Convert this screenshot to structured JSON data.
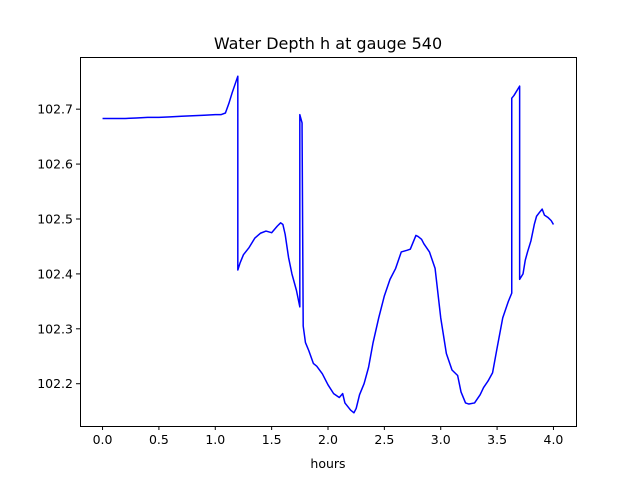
{
  "chart_data": {
    "type": "line",
    "title": "Water Depth h at gauge 540",
    "xlabel": "hours",
    "ylabel": "",
    "xlim": [
      -0.2,
      4.2
    ],
    "ylim": [
      102.123,
      102.795
    ],
    "grid": false,
    "xticks": [
      0.0,
      0.5,
      1.0,
      1.5,
      2.0,
      2.5,
      3.0,
      3.5,
      4.0
    ],
    "xtick_labels": [
      "0.0",
      "0.5",
      "1.0",
      "1.5",
      "2.0",
      "2.5",
      "3.0",
      "3.5",
      "4.0"
    ],
    "yticks": [
      102.2,
      102.3,
      102.4,
      102.5,
      102.6,
      102.7
    ],
    "ytick_labels": [
      "102.2",
      "102.3",
      "102.4",
      "102.5",
      "102.6",
      "102.7"
    ],
    "series": [
      {
        "color": "#0000ff",
        "x": [
          0.0,
          0.1,
          0.2,
          0.3,
          0.4,
          0.5,
          0.6,
          0.7,
          0.8,
          0.9,
          1.0,
          1.05,
          1.09,
          1.12,
          1.15,
          1.18,
          1.2,
          1.2,
          1.22,
          1.25,
          1.3,
          1.35,
          1.4,
          1.45,
          1.5,
          1.55,
          1.58,
          1.6,
          1.62,
          1.65,
          1.68,
          1.72,
          1.75,
          1.75,
          1.77,
          1.77,
          1.78,
          1.8,
          1.83,
          1.87,
          1.9,
          1.95,
          2.0,
          2.05,
          2.1,
          2.13,
          2.15,
          2.2,
          2.23,
          2.25,
          2.28,
          2.32,
          2.36,
          2.4,
          2.45,
          2.5,
          2.55,
          2.6,
          2.65,
          2.7,
          2.73,
          2.75,
          2.78,
          2.8,
          2.83,
          2.85,
          2.9,
          2.95,
          3.0,
          3.05,
          3.1,
          3.15,
          3.18,
          3.22,
          3.25,
          3.3,
          3.35,
          3.38,
          3.42,
          3.46,
          3.5,
          3.55,
          3.6,
          3.63,
          3.63,
          3.65,
          3.7,
          3.7,
          3.73,
          3.75,
          3.77,
          3.8,
          3.83,
          3.85,
          3.88,
          3.9,
          3.92,
          3.95,
          3.98,
          4.0
        ],
        "y": [
          102.683,
          102.683,
          102.683,
          102.684,
          102.685,
          102.685,
          102.686,
          102.687,
          102.688,
          102.689,
          102.69,
          102.69,
          102.693,
          102.71,
          102.73,
          102.748,
          102.76,
          102.407,
          102.42,
          102.435,
          102.448,
          102.465,
          102.474,
          102.478,
          102.475,
          102.487,
          102.493,
          102.49,
          102.472,
          102.43,
          102.4,
          102.37,
          102.34,
          102.69,
          102.675,
          102.665,
          102.305,
          102.275,
          102.26,
          102.237,
          102.232,
          102.218,
          102.198,
          102.182,
          102.175,
          102.182,
          102.165,
          102.152,
          102.147,
          102.155,
          102.18,
          102.2,
          102.23,
          102.275,
          102.32,
          102.36,
          102.39,
          102.41,
          102.44,
          102.443,
          102.445,
          102.455,
          102.47,
          102.468,
          102.463,
          102.455,
          102.44,
          102.41,
          102.32,
          102.255,
          102.225,
          102.215,
          102.185,
          102.165,
          102.163,
          102.165,
          102.18,
          102.193,
          102.205,
          102.22,
          102.265,
          102.32,
          102.35,
          102.365,
          102.72,
          102.725,
          102.742,
          102.39,
          102.4,
          102.425,
          102.44,
          102.46,
          102.49,
          102.505,
          102.513,
          102.518,
          102.507,
          102.503,
          102.497,
          102.49
        ]
      }
    ]
  }
}
